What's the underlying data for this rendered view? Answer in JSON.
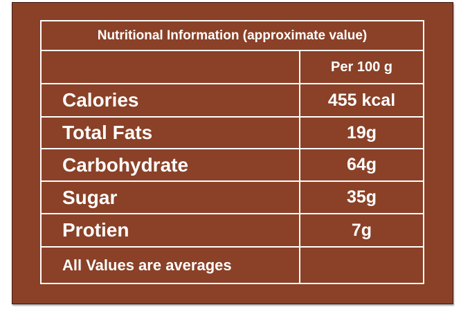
{
  "title": "Nutritional Information (approximate value)",
  "header": {
    "per_unit": "Per 100 g"
  },
  "rows": [
    [
      "Calories",
      "455 kcal"
    ],
    [
      "Total Fats",
      "19g"
    ],
    [
      "Carbohydrate",
      "64g"
    ],
    [
      "Sugar",
      "35g"
    ],
    [
      "Protien",
      "7g"
    ]
  ],
  "footer": "All Values are averages"
}
